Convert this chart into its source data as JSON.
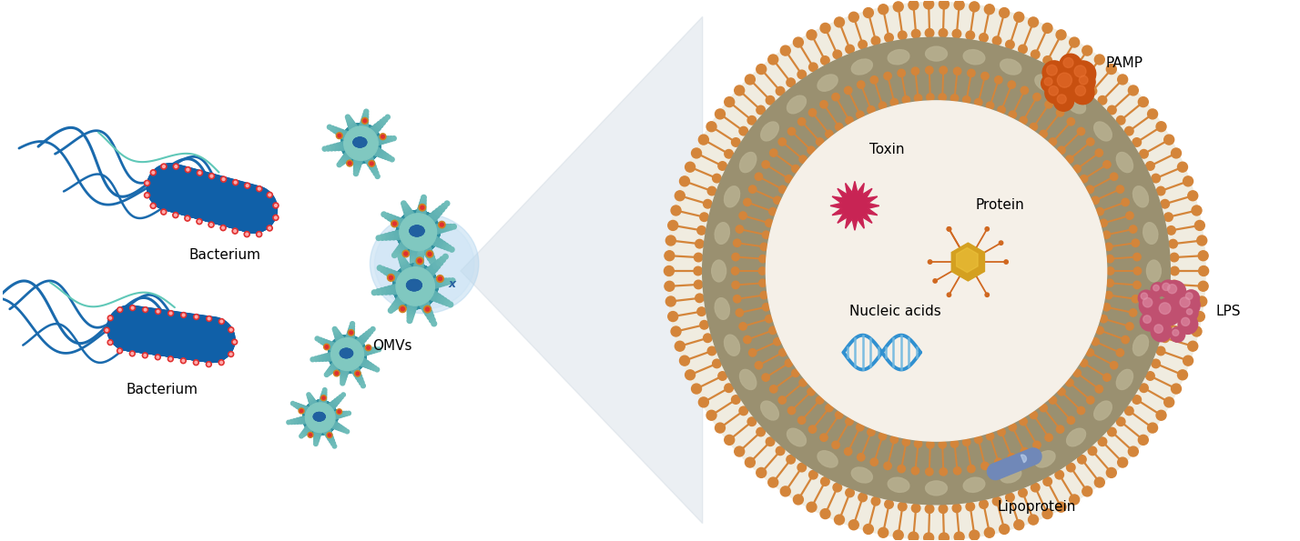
{
  "background_color": "#ffffff",
  "labels": {
    "bacterium": "Bacterium",
    "omvs": "OMVs",
    "toxin": "Toxin",
    "protein": "Protein",
    "nucleic_acids": "Nucleic acids",
    "pamp": "PAMP",
    "lps": "LPS",
    "lipoprotein": "Lipoprotein"
  },
  "colors": {
    "bact_blue_dark": "#1060a8",
    "bact_blue_light": "#40b0d0",
    "bact_teal": "#60c8b8",
    "flagella_blue": "#1a6aad",
    "flagella_teal": "#60c8b8",
    "red_dot_outer": "#e03030",
    "red_dot_inner": "#ff6060",
    "omv_teal_light": "#80c8c0",
    "omv_teal_dark": "#3090a0",
    "omv_nucleus": "#2060a0",
    "omv_spike_orange": "#d08020",
    "omv_spike_teal": "#50b0a8",
    "zoom_blue": "#a8d0e8",
    "funnel_gray": "#c0ccd8",
    "outer_lip_orange": "#d4853a",
    "olive_ring": "#9a9070",
    "interior_cream": "#f5f0e8",
    "toxin_red": "#c02050",
    "toxin_red2": "#e03060",
    "protein_gold": "#d4a020",
    "protein_arm_orange": "#d06820",
    "nucleic_blue": "#3090d0",
    "pamp_orange_dark": "#c85010",
    "pamp_orange_light": "#e87030",
    "lps_pink_dark": "#c05070",
    "lps_pink_light": "#e090a8",
    "lipo_blue": "#7088b8"
  },
  "figsize": [
    14.28,
    5.95
  ],
  "dpi": 100
}
